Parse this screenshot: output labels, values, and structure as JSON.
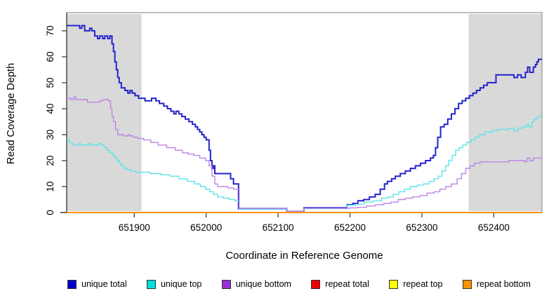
{
  "chart_data": {
    "type": "line",
    "subtype": "step",
    "title": "",
    "xlabel": "Coordinate in Reference Genome",
    "ylabel": "Read Coverage Depth",
    "xlim": [
      651806,
      652467
    ],
    "ylim": [
      0,
      77
    ],
    "x_ticks": [
      651900,
      652000,
      652100,
      652200,
      652300,
      652400
    ],
    "y_ticks": [
      0,
      10,
      20,
      30,
      40,
      50,
      60,
      70
    ],
    "grid": false,
    "legend_position": "bottom",
    "box_color": "#999999",
    "shaded_regions": [
      {
        "name": "left-masked-region",
        "x0": 651806,
        "x1": 651910,
        "color": "#d9d9d9"
      },
      {
        "name": "right-masked-region",
        "x0": 652365,
        "x1": 652467,
        "color": "#d9d9d9"
      }
    ],
    "series": [
      {
        "name": "unique total",
        "color": "#2323cc",
        "legend_color": "#0000cc",
        "width": 2,
        "points": [
          [
            651806,
            72
          ],
          [
            651824,
            71
          ],
          [
            651827,
            72
          ],
          [
            651831,
            70
          ],
          [
            651838,
            71
          ],
          [
            651841,
            70
          ],
          [
            651845,
            68
          ],
          [
            651849,
            67
          ],
          [
            651852,
            68
          ],
          [
            651856,
            67
          ],
          [
            651859,
            68
          ],
          [
            651863,
            67
          ],
          [
            651866,
            68
          ],
          [
            651869,
            65
          ],
          [
            651871,
            62
          ],
          [
            651873,
            58
          ],
          [
            651875,
            55
          ],
          [
            651877,
            52
          ],
          [
            651879,
            50
          ],
          [
            651882,
            48
          ],
          [
            651887,
            47
          ],
          [
            651891,
            46
          ],
          [
            651894,
            47
          ],
          [
            651897,
            46
          ],
          [
            651901,
            45
          ],
          [
            651906,
            44
          ],
          [
            651915,
            43
          ],
          [
            651924,
            44
          ],
          [
            651930,
            43
          ],
          [
            651935,
            42
          ],
          [
            651941,
            41
          ],
          [
            651946,
            40
          ],
          [
            651951,
            39
          ],
          [
            651955,
            38
          ],
          [
            651958,
            39
          ],
          [
            651962,
            38
          ],
          [
            651966,
            37
          ],
          [
            651971,
            36
          ],
          [
            651976,
            35
          ],
          [
            651981,
            34
          ],
          [
            651985,
            33
          ],
          [
            651988,
            32
          ],
          [
            651991,
            31
          ],
          [
            651994,
            30
          ],
          [
            651997,
            29
          ],
          [
            652000,
            28
          ],
          [
            652004,
            24
          ],
          [
            652006,
            20
          ],
          [
            652008,
            17
          ],
          [
            652010,
            18
          ],
          [
            652012,
            15
          ],
          [
            652034,
            13
          ],
          [
            652038,
            11
          ],
          [
            652045,
            1.5
          ],
          [
            652112,
            0.4
          ],
          [
            652136,
            1.8
          ],
          [
            652196,
            3
          ],
          [
            652204,
            3.5
          ],
          [
            652211,
            4.5
          ],
          [
            652219,
            5
          ],
          [
            652227,
            6
          ],
          [
            652235,
            7
          ],
          [
            652242,
            9
          ],
          [
            652248,
            11
          ],
          [
            652252,
            12
          ],
          [
            652258,
            13
          ],
          [
            652263,
            14
          ],
          [
            652270,
            15
          ],
          [
            652277,
            16
          ],
          [
            652284,
            17
          ],
          [
            652291,
            18
          ],
          [
            652298,
            19
          ],
          [
            652305,
            20
          ],
          [
            652312,
            21
          ],
          [
            652316,
            22
          ],
          [
            652319,
            25
          ],
          [
            652322,
            29
          ],
          [
            652326,
            33
          ],
          [
            652331,
            34
          ],
          [
            652336,
            36
          ],
          [
            652341,
            38
          ],
          [
            652346,
            40
          ],
          [
            652351,
            42
          ],
          [
            652356,
            43
          ],
          [
            652361,
            44
          ],
          [
            652366,
            45
          ],
          [
            652371,
            46
          ],
          [
            652376,
            47
          ],
          [
            652381,
            48
          ],
          [
            652386,
            49
          ],
          [
            652391,
            50
          ],
          [
            652403,
            53
          ],
          [
            652428,
            52
          ],
          [
            652433,
            53
          ],
          [
            652438,
            52
          ],
          [
            652444,
            54
          ],
          [
            652447,
            56
          ],
          [
            652450,
            54
          ],
          [
            652455,
            56
          ],
          [
            652458,
            57
          ],
          [
            652460,
            58
          ],
          [
            652462,
            59
          ]
        ]
      },
      {
        "name": "unique top",
        "color": "#5fe3e8",
        "legend_color": "#00dddd",
        "width": 1.4,
        "points": [
          [
            651806,
            28
          ],
          [
            651810,
            27
          ],
          [
            651814,
            26
          ],
          [
            651822,
            26.5
          ],
          [
            651826,
            26
          ],
          [
            651836,
            26.5
          ],
          [
            651840,
            26
          ],
          [
            651850,
            26.5
          ],
          [
            651854,
            26
          ],
          [
            651858,
            25
          ],
          [
            651862,
            24
          ],
          [
            651866,
            23
          ],
          [
            651870,
            22
          ],
          [
            651873,
            21
          ],
          [
            651876,
            20
          ],
          [
            651879,
            19
          ],
          [
            651882,
            18
          ],
          [
            651886,
            17
          ],
          [
            651890,
            16.5
          ],
          [
            651895,
            16
          ],
          [
            651902,
            15.5
          ],
          [
            651922,
            15
          ],
          [
            651937,
            14.5
          ],
          [
            651950,
            14
          ],
          [
            651962,
            13
          ],
          [
            651974,
            12
          ],
          [
            651984,
            11
          ],
          [
            651992,
            10
          ],
          [
            651999,
            9
          ],
          [
            652005,
            8
          ],
          [
            652010,
            7
          ],
          [
            652016,
            6
          ],
          [
            652024,
            5.5
          ],
          [
            652032,
            5
          ],
          [
            652040,
            4.5
          ],
          [
            652046,
            1.2
          ],
          [
            652112,
            0.3
          ],
          [
            652136,
            1.5
          ],
          [
            652196,
            2.8
          ],
          [
            652208,
            3.2
          ],
          [
            652220,
            4
          ],
          [
            652232,
            4.5
          ],
          [
            652244,
            5.5
          ],
          [
            652252,
            6
          ],
          [
            652260,
            7
          ],
          [
            652268,
            8
          ],
          [
            652276,
            9
          ],
          [
            652284,
            10
          ],
          [
            652294,
            10.5
          ],
          [
            652302,
            11
          ],
          [
            652310,
            12
          ],
          [
            652317,
            13
          ],
          [
            652323,
            14
          ],
          [
            652328,
            16
          ],
          [
            652333,
            18
          ],
          [
            652337,
            20
          ],
          [
            652342,
            22
          ],
          [
            652347,
            24
          ],
          [
            652352,
            25
          ],
          [
            652357,
            26
          ],
          [
            652362,
            27
          ],
          [
            652368,
            28
          ],
          [
            652374,
            29
          ],
          [
            652380,
            30
          ],
          [
            652388,
            31
          ],
          [
            652398,
            31.5
          ],
          [
            652405,
            32
          ],
          [
            652421,
            32.5
          ],
          [
            652428,
            31.5
          ],
          [
            652434,
            32.5
          ],
          [
            652440,
            33
          ],
          [
            652446,
            34
          ],
          [
            652449,
            33
          ],
          [
            652453,
            35
          ],
          [
            652456,
            36
          ],
          [
            652461,
            37
          ]
        ]
      },
      {
        "name": "unique bottom",
        "color": "#bd85e4",
        "legend_color": "#9a2fd6",
        "width": 1.4,
        "points": [
          [
            651806,
            44
          ],
          [
            651812,
            43.5
          ],
          [
            651816,
            44.5
          ],
          [
            651819,
            43.5
          ],
          [
            651835,
            42.5
          ],
          [
            651852,
            43
          ],
          [
            651856,
            43.5
          ],
          [
            651864,
            43
          ],
          [
            651867,
            40
          ],
          [
            651869,
            37
          ],
          [
            651871,
            35
          ],
          [
            651874,
            32
          ],
          [
            651877,
            30
          ],
          [
            651885,
            29.5
          ],
          [
            651891,
            30
          ],
          [
            651894,
            29.5
          ],
          [
            651899,
            29
          ],
          [
            651905,
            28.5
          ],
          [
            651913,
            28
          ],
          [
            651923,
            27
          ],
          [
            651933,
            26
          ],
          [
            651945,
            25
          ],
          [
            651957,
            24
          ],
          [
            651967,
            23
          ],
          [
            651975,
            22.5
          ],
          [
            651983,
            22
          ],
          [
            651991,
            21
          ],
          [
            651999,
            20
          ],
          [
            652004,
            18
          ],
          [
            652008,
            14
          ],
          [
            652012,
            11
          ],
          [
            652016,
            10
          ],
          [
            652030,
            9.5
          ],
          [
            652038,
            9
          ],
          [
            652046,
            1.5
          ],
          [
            652112,
            0.4
          ],
          [
            652136,
            1.6
          ],
          [
            652200,
            1.8
          ],
          [
            652211,
            2
          ],
          [
            652223,
            2.5
          ],
          [
            652235,
            3
          ],
          [
            652247,
            3.5
          ],
          [
            652257,
            4
          ],
          [
            652267,
            5
          ],
          [
            652277,
            5.5
          ],
          [
            652287,
            6
          ],
          [
            652297,
            6.5
          ],
          [
            652307,
            7.5
          ],
          [
            652317,
            8
          ],
          [
            652325,
            9
          ],
          [
            652333,
            10
          ],
          [
            652341,
            11
          ],
          [
            652349,
            13
          ],
          [
            652355,
            15
          ],
          [
            652361,
            17
          ],
          [
            652367,
            18
          ],
          [
            652373,
            19
          ],
          [
            652381,
            19.5
          ],
          [
            652421,
            20
          ],
          [
            652443,
            19.5
          ],
          [
            652446,
            21
          ],
          [
            652450,
            20
          ],
          [
            652455,
            21
          ]
        ]
      },
      {
        "name": "repeat total",
        "color": "#dd0000",
        "legend_color": "#ee0000",
        "width": 1.4,
        "points": [
          [
            651806,
            0
          ]
        ]
      },
      {
        "name": "repeat top",
        "color": "#ffff00",
        "legend_color": "#ffff00",
        "width": 1.4,
        "points": [
          [
            651806,
            0
          ]
        ]
      },
      {
        "name": "repeat bottom",
        "color": "#ff9000",
        "legend_color": "#ff9000",
        "width": 2,
        "points": [
          [
            651806,
            0
          ]
        ]
      }
    ]
  }
}
